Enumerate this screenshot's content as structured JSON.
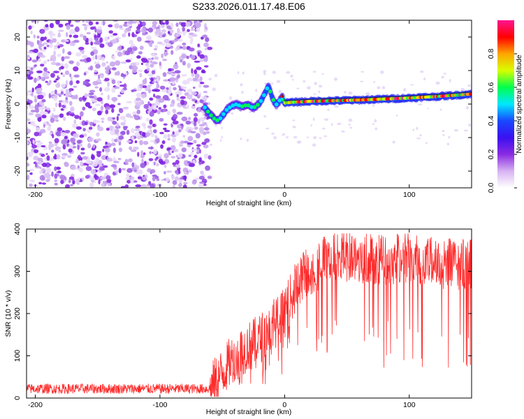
{
  "figure": {
    "title": "S233.2026.011.17.48.E06"
  },
  "chart_data": [
    {
      "type": "heatmap",
      "title": "S233.2026.011.17.48.E06",
      "xlabel": "Height of straight line (km)",
      "ylabel": "Frequency (Hz)",
      "xlim": [
        -207,
        150
      ],
      "ylim": [
        -25,
        25
      ],
      "xticks": [
        -200,
        -100,
        0,
        100
      ],
      "xtick_labels": [
        "-200",
        "-100",
        "0",
        "100"
      ],
      "yticks": [
        -20,
        -10,
        0,
        10,
        20
      ],
      "ytick_labels": [
        "-20",
        "-10",
        "0",
        "10",
        "20"
      ],
      "noise_region_x": [
        -207,
        -60
      ],
      "ridge_x": [
        -64,
        -60,
        -56,
        -53,
        -50,
        -46,
        -42,
        -38,
        -35,
        -30,
        -25,
        -20,
        -16,
        -13,
        -10,
        -7,
        -5,
        -2,
        0,
        5,
        20,
        40,
        60,
        80,
        100,
        120,
        140,
        150
      ],
      "ridge_y": [
        -1,
        -3,
        -4.5,
        -5,
        -3.5,
        -1.5,
        -0.5,
        0,
        -0.8,
        -0.2,
        -1.2,
        0.2,
        3,
        5.5,
        2,
        -0.3,
        0.5,
        2.3,
        0.3,
        0.5,
        0.8,
        1,
        1.2,
        1.5,
        1.8,
        2.2,
        2.7,
        3
      ],
      "hot_ridge_x": [
        -2,
        150
      ]
    },
    {
      "type": "colorbar",
      "label": "Normalized spectral amplitude",
      "range": [
        0,
        1
      ],
      "ticks": [
        0,
        0.2,
        0.4,
        0.6,
        0.8
      ],
      "tick_labels": [
        "0.0",
        "0.2",
        "0.4",
        "0.6",
        "0.8"
      ],
      "colormap": [
        "#ffffff",
        "#d7b3f2",
        "#8a2be2",
        "#3a10f0",
        "#1848ff",
        "#00e8ff",
        "#00ff4c",
        "#d8ff00",
        "#ffa500",
        "#ff0000",
        "#ff1493"
      ]
    },
    {
      "type": "line",
      "title": "",
      "xlabel": "Height of straight line (km)",
      "ylabel": "SNR (10 * v/v)",
      "xlim": [
        -207,
        150
      ],
      "ylim": [
        0,
        400
      ],
      "xticks": [
        -200,
        -100,
        0,
        100
      ],
      "xtick_labels": [
        "-200",
        "-100",
        "0",
        "100"
      ],
      "yticks": [
        0,
        100,
        200,
        300,
        400
      ],
      "ytick_labels": [
        "0",
        "100",
        "200",
        "300",
        "400"
      ],
      "color": "#ff2a2a",
      "series_envelope": {
        "x": [
          -207,
          -60,
          -50,
          -40,
          -30,
          -20,
          -10,
          0,
          10,
          20,
          30,
          40,
          60,
          80,
          100,
          120,
          140,
          150
        ],
        "y": [
          22,
          22,
          60,
          100,
          120,
          140,
          170,
          200,
          270,
          300,
          320,
          330,
          330,
          325,
          330,
          320,
          315,
          315
        ]
      },
      "noise_amplitude": [
        12,
        60
      ],
      "dropouts_min": 70
    }
  ]
}
